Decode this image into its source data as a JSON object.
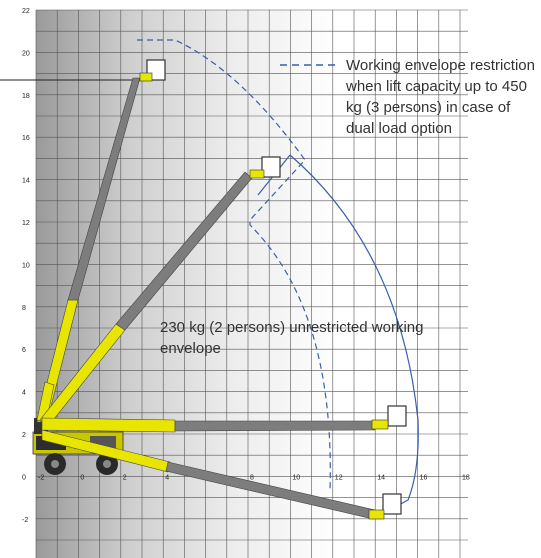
{
  "axes": {
    "x_ticks": [
      "-2",
      "0",
      "2",
      "4",
      "6",
      "8",
      "10",
      "12",
      "14",
      "16",
      "18"
    ],
    "y_ticks": [
      "22",
      "20",
      "18",
      "16",
      "14",
      "12",
      "10",
      "8",
      "6",
      "4",
      "2",
      "0",
      "-2"
    ]
  },
  "legend": {
    "line1": "Working envelope restriction",
    "line2": "when lift capacity up to 450",
    "line3": "kg (3 persons) in case of",
    "line4": "dual load option"
  },
  "annotation": {
    "line1": "230 kg (2 persons) unrestricted working",
    "line2": "envelope"
  },
  "colors": {
    "boom_yellow": "#e8e600",
    "boom_gray": "#7d7d7d",
    "envelope_blue": "#3a5fa8",
    "background_dark": "#9a9a9a"
  }
}
